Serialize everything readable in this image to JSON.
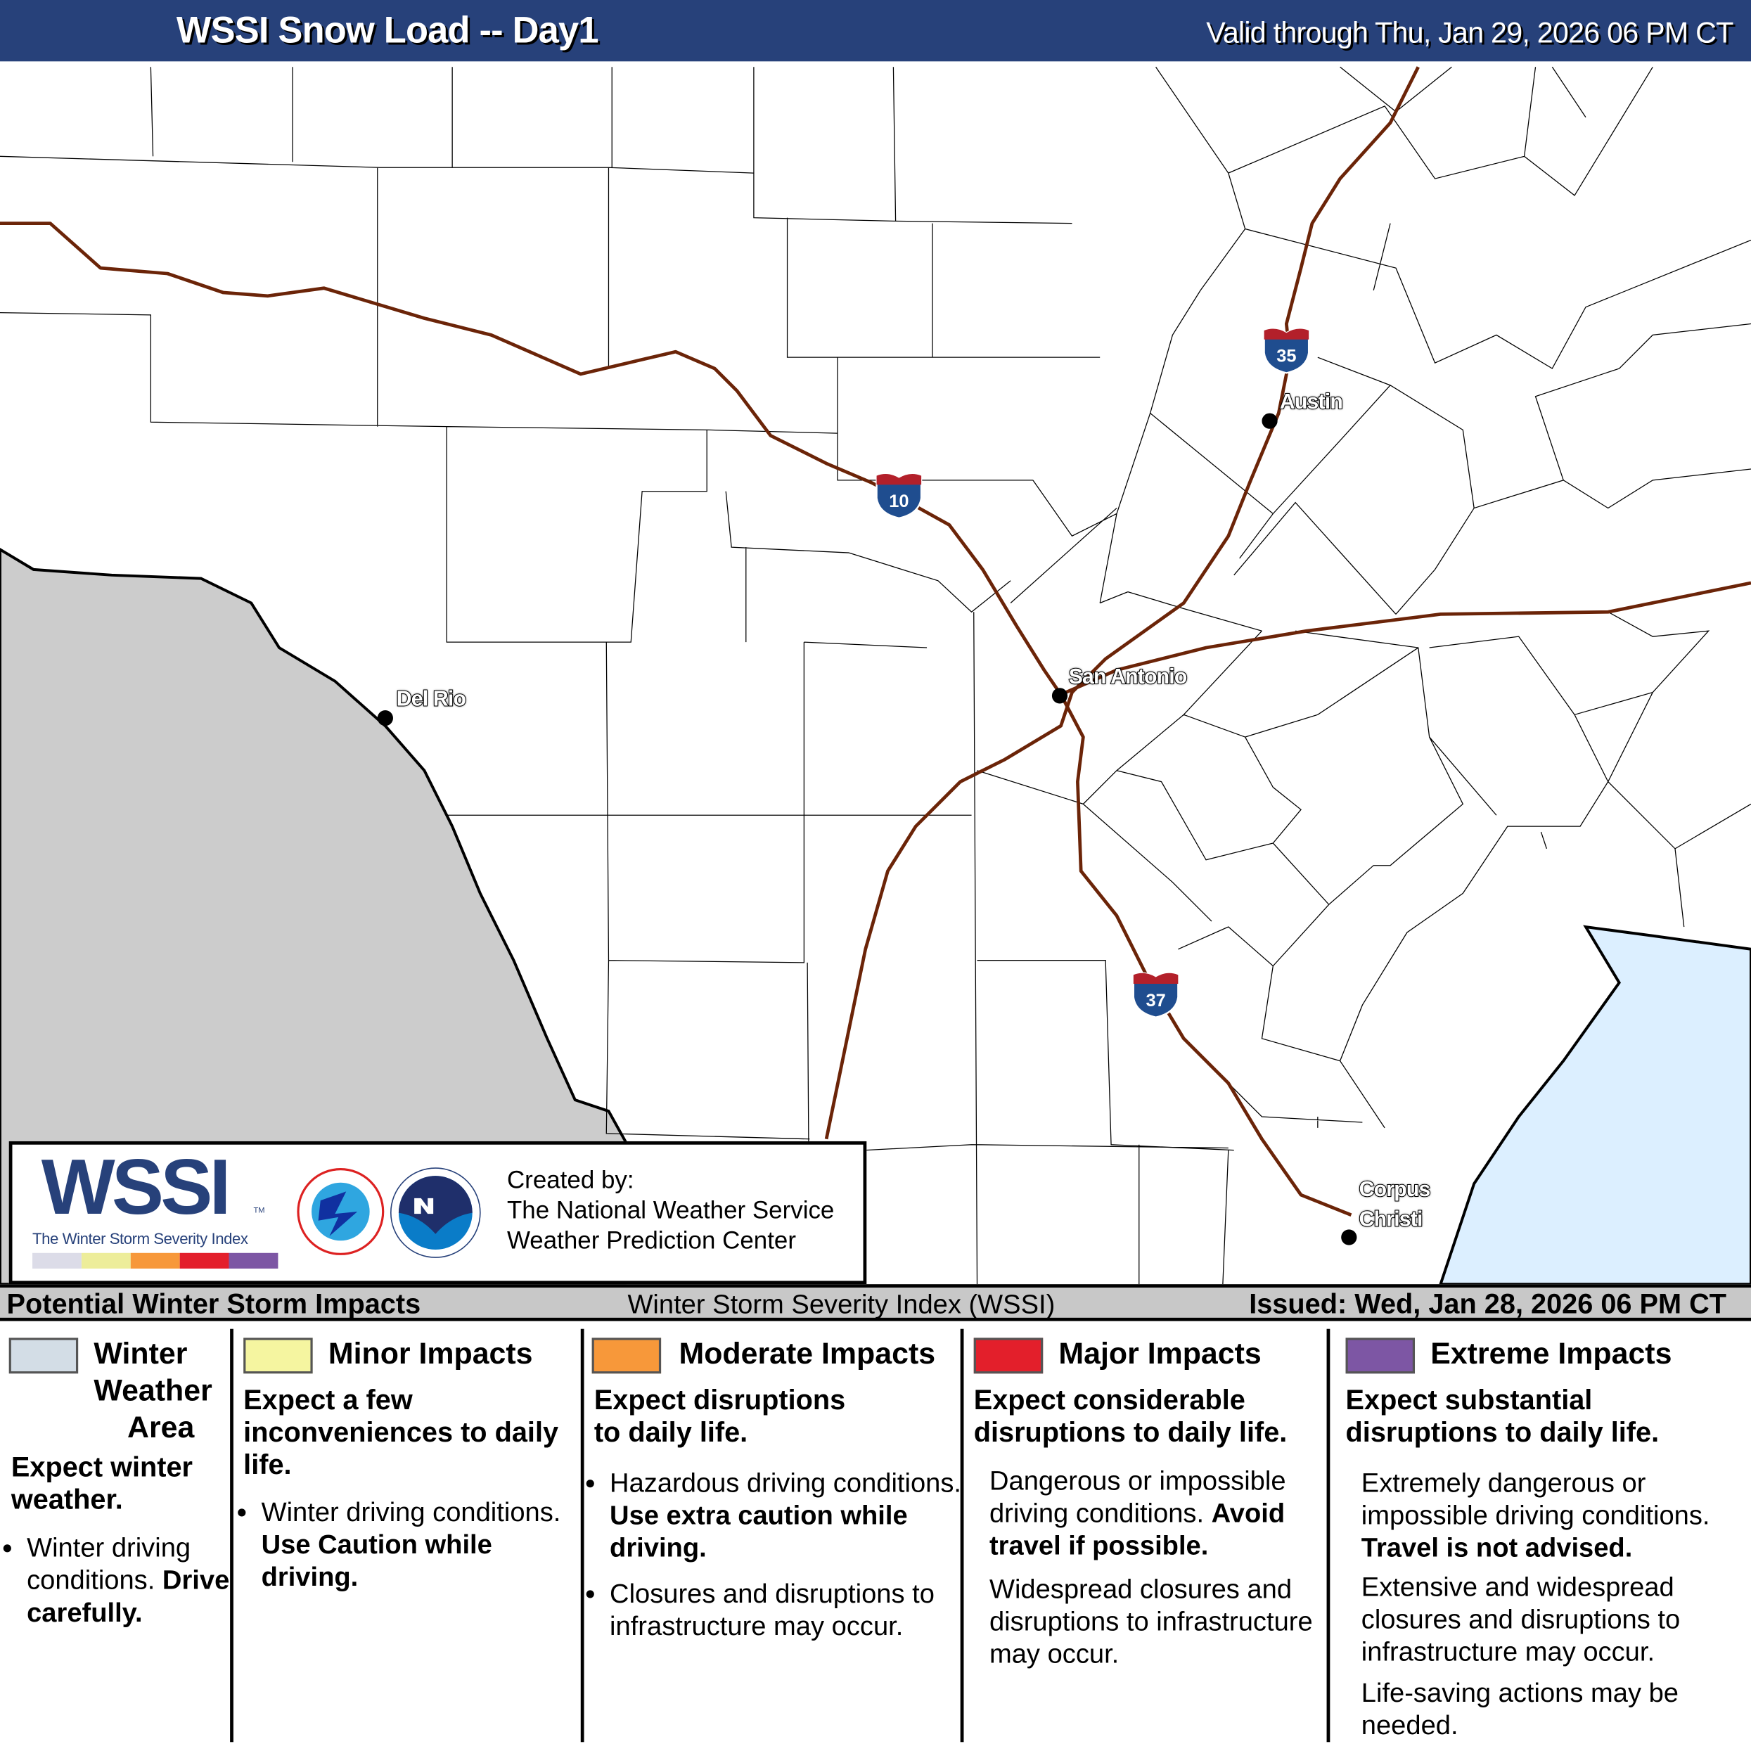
{
  "header": {
    "title": "WSSI Snow Load -- Day1",
    "valid": "Valid through Thu, Jan 29, 2026 06 PM CT"
  },
  "map": {
    "cities": [
      "Austin",
      "San Antonio",
      "Del Rio",
      "Corpus",
      "Christi"
    ],
    "highways": [
      "10",
      "35",
      "37"
    ],
    "colors": {
      "highway": "#6b2408",
      "mexico": "#cccccc",
      "water": "#dcefff",
      "shield_blue": "#1f4d8f",
      "shield_red": "#b3202a"
    }
  },
  "logo": {
    "wssi": "WSSI",
    "tm": "TM",
    "subtitle": "The Winter Storm Severity Index",
    "credit": [
      "Created by:",
      "The National Weather Service",
      "Weather Prediction Center"
    ],
    "scale_colors": [
      "#dcdce8",
      "#eded9a",
      "#f7983a",
      "#e31f2b",
      "#7d56a4"
    ]
  },
  "bottom_bar": {
    "left": "Potential Winter Storm Impacts",
    "center": "Winter Storm Severity Index (WSSI)",
    "right": "Issued: Wed, Jan 28, 2026 06 PM CT"
  },
  "legend": [
    {
      "title": [
        "Winter",
        "Weather",
        "Area"
      ],
      "color": "#d3dde6",
      "summary": "Expect winter weather.",
      "bullet": "Winter driving conditions.",
      "bold": "Drive carefully."
    },
    {
      "title": "Minor Impacts",
      "color": "#f5f5a0",
      "summary": "Expect a few inconveniences to daily life.",
      "bullet": "Winter driving conditions.",
      "bold": "Use Caution while driving."
    },
    {
      "title": "Moderate Impacts",
      "color": "#f7983a",
      "summary": "Expect disruptions to daily life.",
      "bullet": "Hazardous driving conditions.",
      "bold": "Use extra caution while driving.",
      "bullet2": "Closures and disruptions to infrastructure may occur."
    },
    {
      "title": "Major Impacts",
      "color": "#e31f2b",
      "summary": "Expect considerable disruptions to daily life.",
      "text": "Dangerous or impossible driving conditions.",
      "bold": "Avoid travel if possible.",
      "text2": "Widespread closures and disruptions to infrastructure may occur."
    },
    {
      "title": "Extreme Impacts",
      "color": "#7d56a4",
      "summary": "Expect substantial disruptions to daily life.",
      "text": "Extremely dangerous or impossible driving conditions.",
      "bold": "Travel is not advised.",
      "text2": "Extensive and widespread closures and disruptions to infrastructure may occur.",
      "text3": "Life-saving actions may be needed."
    }
  ]
}
